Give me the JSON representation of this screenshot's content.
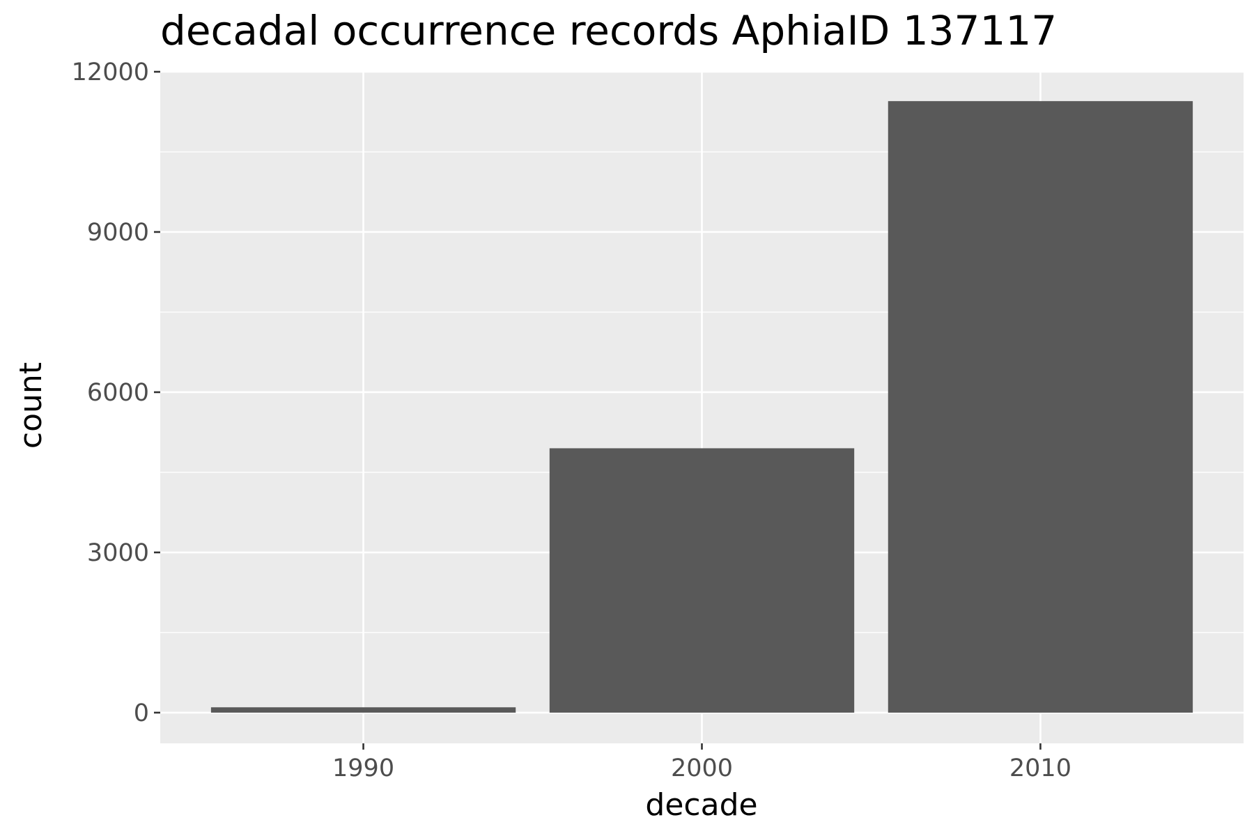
{
  "chart_data": {
    "type": "bar",
    "title": "decadal occurrence records AphiaID 137117",
    "xlabel": "decade",
    "ylabel": "count",
    "categories": [
      "1990",
      "2000",
      "2010"
    ],
    "x": [
      1990,
      2000,
      2010
    ],
    "values": [
      100,
      4950,
      11450
    ],
    "xlim": [
      1984,
      2016
    ],
    "ylim": [
      -575,
      12000
    ],
    "yticks": [
      0,
      3000,
      6000,
      9000,
      12000
    ],
    "ytick_labels": [
      "0",
      "3000",
      "6000",
      "9000",
      "12000"
    ],
    "bar_width": 9,
    "grid": true,
    "legend": "none",
    "colors": {
      "bar": "#595959",
      "panel_background": "#ebebeb",
      "grid_major": "#ffffff",
      "grid_minor": "#f5f5f5",
      "tick": "#333333",
      "tick_label": "#4d4d4d",
      "text": "#000000"
    }
  }
}
